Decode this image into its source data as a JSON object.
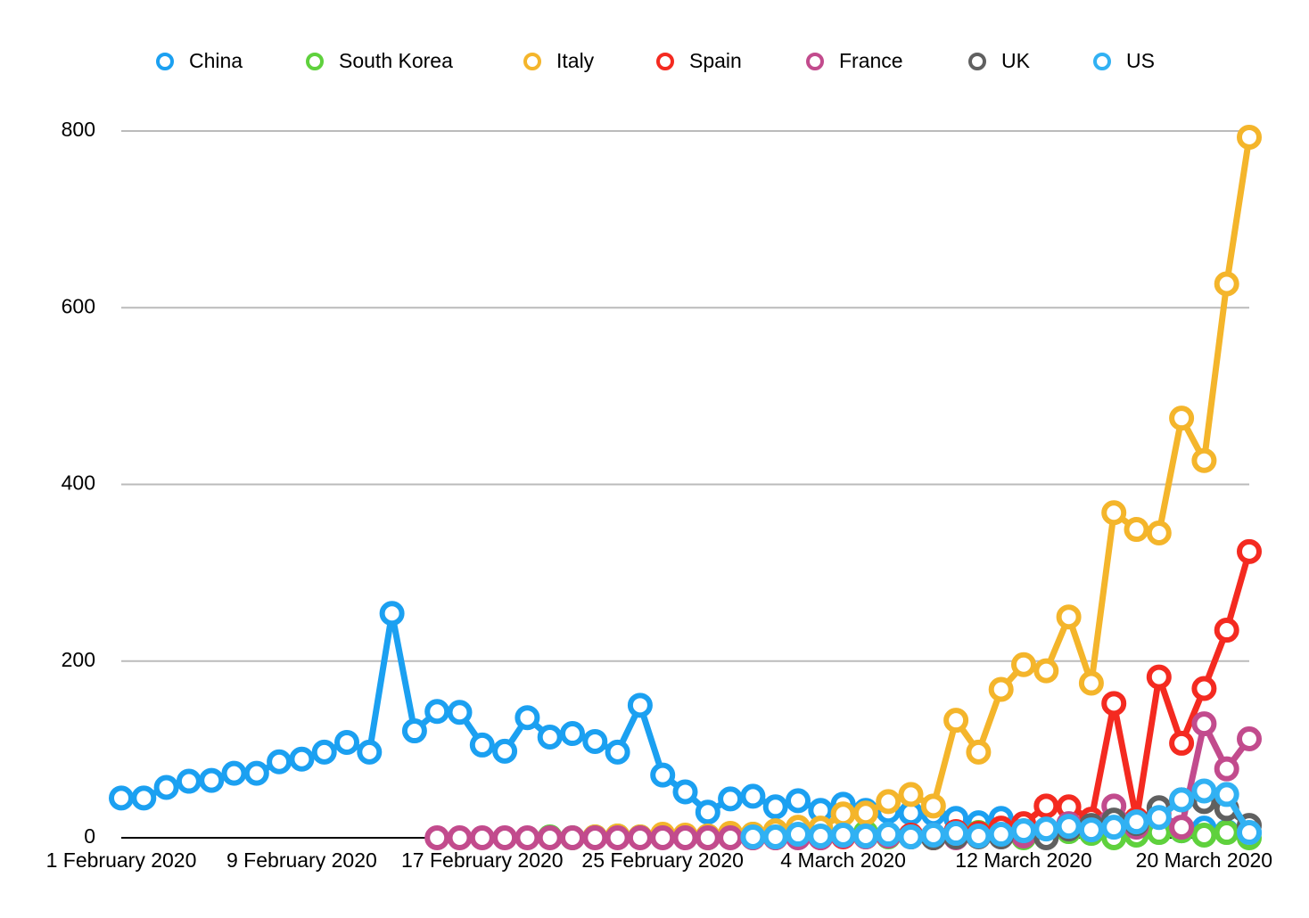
{
  "chart_data": {
    "type": "line",
    "categories": [
      "1 February 2020",
      null,
      null,
      null,
      null,
      null,
      null,
      null,
      "9 February 2020",
      null,
      null,
      null,
      null,
      null,
      null,
      null,
      "17 February 2020",
      null,
      null,
      null,
      null,
      null,
      null,
      null,
      "25 February 2020",
      null,
      null,
      null,
      null,
      null,
      null,
      null,
      "4 March 2020",
      null,
      null,
      null,
      null,
      null,
      null,
      null,
      "12 March 2020",
      null,
      null,
      null,
      null,
      null,
      null,
      null,
      "20 March 2020",
      null,
      null
    ],
    "ylim": [
      0,
      800
    ],
    "yticks": [
      0,
      200,
      400,
      600,
      800
    ],
    "grid": true,
    "legend": "top",
    "series": [
      {
        "name": "China",
        "color": "#1ba0f1",
        "values": [
          45,
          45,
          57,
          64,
          65,
          73,
          73,
          86,
          89,
          97,
          108,
          97,
          254,
          121,
          143,
          142,
          105,
          98,
          136,
          114,
          118,
          109,
          97,
          150,
          71,
          52,
          29,
          44,
          47,
          35,
          42,
          31,
          38,
          31,
          30,
          28,
          27,
          22,
          17,
          22,
          11,
          7,
          13,
          10,
          14,
          13,
          13,
          8,
          11,
          7,
          6
        ]
      },
      {
        "name": "South Korea",
        "color": "#5fd13d",
        "values": [
          null,
          null,
          null,
          null,
          null,
          null,
          null,
          null,
          null,
          null,
          null,
          null,
          null,
          null,
          null,
          null,
          null,
          null,
          null,
          1,
          0,
          1,
          2,
          1,
          2,
          1,
          0,
          1,
          4,
          1,
          4,
          4,
          3,
          6,
          1,
          2,
          0,
          6,
          6,
          6,
          0,
          3,
          7,
          5,
          0,
          3,
          6,
          8,
          3,
          6,
          0
        ]
      },
      {
        "name": "Italy",
        "color": "#f4b52b",
        "values": [
          null,
          null,
          null,
          null,
          null,
          null,
          null,
          null,
          null,
          null,
          null,
          null,
          null,
          null,
          null,
          null,
          null,
          null,
          null,
          null,
          null,
          1,
          2,
          1,
          4,
          3,
          2,
          5,
          4,
          8,
          12,
          11,
          27,
          28,
          41,
          49,
          36,
          133,
          97,
          168,
          196,
          189,
          250,
          175,
          368,
          349,
          345,
          475,
          427,
          627,
          793
        ]
      },
      {
        "name": "Spain",
        "color": "#f42a20",
        "values": [
          null,
          null,
          null,
          null,
          null,
          null,
          null,
          null,
          null,
          null,
          null,
          null,
          null,
          null,
          null,
          null,
          null,
          null,
          null,
          null,
          null,
          null,
          null,
          null,
          null,
          null,
          null,
          null,
          0,
          0,
          1,
          0,
          1,
          1,
          2,
          3,
          0,
          7,
          5,
          11,
          16,
          36,
          35,
          21,
          152,
          21,
          182,
          107,
          169,
          235,
          324
        ]
      },
      {
        "name": "France",
        "color": "#c24b8d",
        "values": [
          null,
          null,
          null,
          null,
          null,
          null,
          null,
          null,
          null,
          null,
          null,
          null,
          null,
          null,
          0,
          0,
          0,
          0,
          0,
          0,
          0,
          0,
          0,
          0,
          0,
          0,
          0,
          0,
          0,
          0,
          0,
          0,
          2,
          1,
          2,
          1,
          3,
          0,
          2,
          1,
          2,
          3,
          16,
          12,
          36,
          12,
          27,
          12,
          129,
          78,
          112
        ]
      },
      {
        "name": "UK",
        "color": "#606060",
        "values": [
          null,
          null,
          null,
          null,
          null,
          null,
          null,
          null,
          null,
          null,
          null,
          null,
          null,
          null,
          null,
          null,
          null,
          null,
          null,
          null,
          null,
          null,
          null,
          null,
          null,
          null,
          null,
          null,
          null,
          null,
          null,
          null,
          null,
          null,
          null,
          1,
          0,
          1,
          1,
          1,
          8,
          0,
          10,
          14,
          20,
          16,
          34,
          43,
          41,
          33,
          14
        ]
      },
      {
        "name": "US",
        "color": "#31b1f3",
        "values": [
          null,
          null,
          null,
          null,
          null,
          null,
          null,
          null,
          null,
          null,
          null,
          null,
          null,
          null,
          null,
          null,
          null,
          null,
          null,
          null,
          null,
          null,
          null,
          null,
          null,
          null,
          null,
          null,
          1,
          1,
          4,
          2,
          3,
          2,
          4,
          1,
          3,
          5,
          2,
          4,
          8,
          10,
          13,
          9,
          12,
          18,
          23,
          43,
          53,
          49,
          6
        ]
      }
    ]
  }
}
